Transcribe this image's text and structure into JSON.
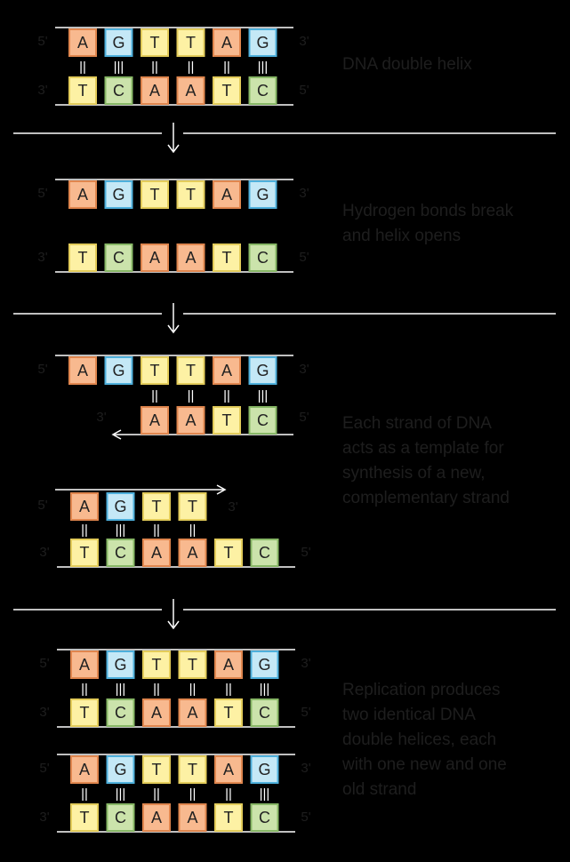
{
  "panels": [
    {
      "caption": [
        "DNA double helix"
      ],
      "helices": [
        {
          "top": {
            "ends": [
              "5'",
              "3'"
            ],
            "bases": [
              "A",
              "G",
              "T",
              "T",
              "A",
              "G"
            ]
          },
          "bonds": [
            "||",
            "|||",
            "||",
            "||",
            "||",
            "|||"
          ],
          "bottom": {
            "ends": [
              "3'",
              "5'"
            ],
            "bases": [
              "T",
              "C",
              "A",
              "A",
              "T",
              "C"
            ]
          }
        }
      ]
    },
    {
      "caption": [
        "Hydrogen bonds break",
        "and helix opens"
      ],
      "helices": [
        {
          "top": {
            "ends": [
              "5'",
              "3'"
            ],
            "bases": [
              "A",
              "G",
              "T",
              "T",
              "A",
              "G"
            ]
          },
          "bonds": [],
          "bottom": {
            "ends": [
              "3'",
              "5'"
            ],
            "bases": [
              "T",
              "C",
              "A",
              "A",
              "T",
              "C"
            ]
          }
        }
      ]
    },
    {
      "caption": [
        "Each strand of DNA",
        "acts as a template for",
        "synthesis of a new,",
        "complementary strand"
      ],
      "helices": [
        {
          "top": {
            "ends": [
              "5'",
              "3'"
            ],
            "bases": [
              "A",
              "G",
              "T",
              "T",
              "A",
              "G"
            ]
          },
          "bonds": [
            "||",
            "||",
            "||",
            "|||"
          ],
          "bottom": {
            "ends": [
              "3'",
              "5'"
            ],
            "bases": [
              "A",
              "A",
              "T",
              "C"
            ]
          }
        },
        {
          "top": {
            "ends": [
              "5'",
              "3'"
            ],
            "bases": [
              "A",
              "G",
              "T",
              "T"
            ]
          },
          "bonds": [
            "||",
            "|||",
            "||",
            "||"
          ],
          "bottom": {
            "ends": [
              "3'",
              "5'"
            ],
            "bases": [
              "T",
              "C",
              "A",
              "A",
              "T",
              "C"
            ]
          }
        }
      ]
    },
    {
      "caption": [
        "Replication produces",
        "two identical DNA",
        "double helices, each",
        "with one new and one",
        "old strand"
      ],
      "helices": [
        {
          "top": {
            "ends": [
              "5'",
              "3'"
            ],
            "bases": [
              "A",
              "G",
              "T",
              "T",
              "A",
              "G"
            ]
          },
          "bonds": [
            "||",
            "|||",
            "||",
            "||",
            "||",
            "|||"
          ],
          "bottom": {
            "ends": [
              "3'",
              "5'"
            ],
            "bases": [
              "T",
              "C",
              "A",
              "A",
              "T",
              "C"
            ]
          }
        },
        {
          "top": {
            "ends": [
              "5'",
              "3'"
            ],
            "bases": [
              "A",
              "G",
              "T",
              "T",
              "A",
              "G"
            ]
          },
          "bonds": [
            "||",
            "|||",
            "||",
            "||",
            "||",
            "|||"
          ],
          "bottom": {
            "ends": [
              "3'",
              "5'"
            ],
            "bases": [
              "T",
              "C",
              "A",
              "A",
              "T",
              "C"
            ]
          }
        }
      ]
    }
  ]
}
